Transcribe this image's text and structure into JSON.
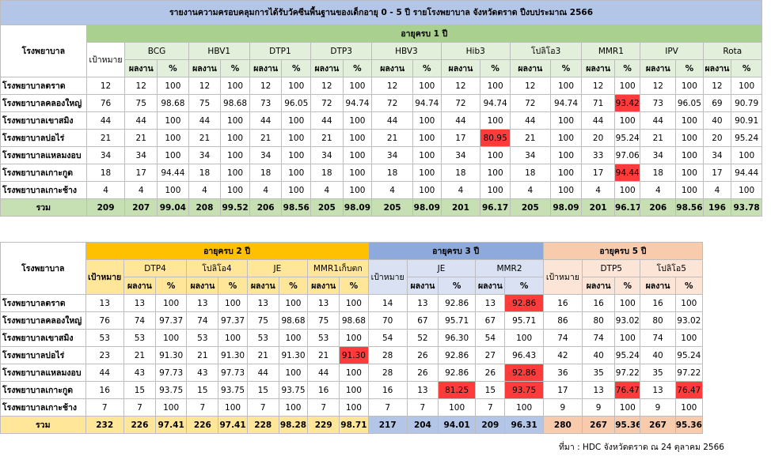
{
  "table1": {
    "title": "รายงานความครอบคลุมการได้รับวัคซีนพื้นฐานของเด็กอายุ 0 - 5 ปี รายโรงพยาบาล จังหวัดตราด  ปีงบประมาณ 2566",
    "hospital_header": "โรงพยาบาล",
    "age_header": "อายุครบ 1 ปี",
    "target_header": "เป้าหมาย",
    "result_label": "ผลงาน",
    "pct_label": "%",
    "vaccines": [
      "BCG",
      "HBV1",
      "DTP1",
      "DTP3",
      "HBV3",
      "Hib3",
      "โปลิโอ3",
      "MMR1",
      "IPV",
      "Rota"
    ],
    "rows": [
      {
        "name": "โรงพยาบาลตราด",
        "cells": [
          "12",
          "12",
          "100",
          "12",
          "100",
          "12",
          "100",
          "12",
          "100",
          "12",
          "100",
          "12",
          "100",
          "12",
          "100",
          "12",
          "100",
          "12",
          "100",
          "12",
          "100"
        ]
      },
      {
        "name": "โรงพยาบาลคลองใหญ่",
        "cells": [
          "76",
          "75",
          "98.68",
          "75",
          "98.68",
          "73",
          "96.05",
          "72",
          "94.74",
          "72",
          "94.74",
          "72",
          "94.74",
          "72",
          "94.74",
          "71",
          "93.42",
          "73",
          "96.05",
          "69",
          "90.79"
        ]
      },
      {
        "name": "โรงพยาบาลเขาสมิง",
        "cells": [
          "44",
          "44",
          "100",
          "44",
          "100",
          "44",
          "100",
          "44",
          "100",
          "44",
          "100",
          "44",
          "100",
          "44",
          "100",
          "44",
          "100",
          "44",
          "100",
          "40",
          "90.91"
        ]
      },
      {
        "name": "โรงพยาบาลบ่อไร่",
        "cells": [
          "21",
          "21",
          "100",
          "21",
          "100",
          "21",
          "100",
          "21",
          "100",
          "21",
          "100",
          "17",
          "80.95",
          "21",
          "100",
          "20",
          "95.24",
          "21",
          "100",
          "20",
          "95.24"
        ]
      },
      {
        "name": "โรงพยาบาลแหลมงอบ",
        "cells": [
          "34",
          "34",
          "100",
          "34",
          "100",
          "34",
          "100",
          "34",
          "100",
          "34",
          "100",
          "34",
          "100",
          "34",
          "100",
          "33",
          "97.06",
          "34",
          "100",
          "34",
          "100"
        ]
      },
      {
        "name": "โรงพยาบาลเกาะกูด",
        "cells": [
          "18",
          "17",
          "94.44",
          "18",
          "100",
          "18",
          "100",
          "18",
          "100",
          "18",
          "100",
          "18",
          "100",
          "18",
          "100",
          "17",
          "94.44",
          "18",
          "100",
          "17",
          "94.44"
        ]
      },
      {
        "name": "โรงพยาบาลเกาะช้าง",
        "cells": [
          "4",
          "4",
          "100",
          "4",
          "100",
          "4",
          "100",
          "4",
          "100",
          "4",
          "100",
          "4",
          "100",
          "4",
          "100",
          "4",
          "100",
          "4",
          "100",
          "4",
          "100"
        ]
      }
    ],
    "total": {
      "name": "รวม",
      "cells": [
        "209",
        "207",
        "99.04",
        "208",
        "99.52",
        "206",
        "98.56",
        "205",
        "98.09",
        "205",
        "98.09",
        "201",
        "96.17",
        "205",
        "98.09",
        "201",
        "96.17",
        "206",
        "98.56",
        "196",
        "93.78"
      ]
    },
    "highlight_color": "#ff3b3b"
  },
  "table2": {
    "hospital_header": "โรงพยาบาล",
    "target_header": "เป้าหมาย",
    "result_label": "ผลงาน",
    "pct_label": "%",
    "age2_header": "อายุครบ 2 ปี",
    "age2_vaccines": [
      "DTP4",
      "โปลิโอ4",
      "JE",
      "MMR1เก็บตก"
    ],
    "age3_header": "อายุครบ 3 ปี",
    "age3_vaccines": [
      "JE",
      "MMR2"
    ],
    "age5_header": "อายุครบ 5 ปี",
    "age5_vaccines": [
      "DTP5",
      "โปลิโอ5"
    ],
    "rows": [
      {
        "name": "โรงพยาบาลตราด",
        "a2": [
          "13",
          "13",
          "100",
          "13",
          "100",
          "13",
          "100",
          "13",
          "100"
        ],
        "a3": [
          "14",
          "13",
          "92.86",
          "13",
          "92.86"
        ],
        "a5": [
          "16",
          "16",
          "100",
          "16",
          "100"
        ]
      },
      {
        "name": "โรงพยาบาลคลองใหญ่",
        "a2": [
          "76",
          "74",
          "97.37",
          "74",
          "97.37",
          "75",
          "98.68",
          "75",
          "98.68"
        ],
        "a3": [
          "70",
          "67",
          "95.71",
          "67",
          "95.71"
        ],
        "a5": [
          "86",
          "80",
          "93.02",
          "80",
          "93.02"
        ]
      },
      {
        "name": "โรงพยาบาลเขาสมิง",
        "a2": [
          "53",
          "53",
          "100",
          "53",
          "100",
          "53",
          "100",
          "53",
          "100"
        ],
        "a3": [
          "54",
          "52",
          "96.30",
          "54",
          "100"
        ],
        "a5": [
          "74",
          "74",
          "100",
          "74",
          "100"
        ]
      },
      {
        "name": "โรงพยาบาลบ่อไร่",
        "a2": [
          "23",
          "21",
          "91.30",
          "21",
          "91.30",
          "21",
          "91.30",
          "21",
          "91.30"
        ],
        "a3": [
          "28",
          "26",
          "92.86",
          "27",
          "96.43"
        ],
        "a5": [
          "42",
          "40",
          "95.24",
          "40",
          "95.24"
        ]
      },
      {
        "name": "โรงพยาบาลแหลมงอบ",
        "a2": [
          "44",
          "43",
          "97.73",
          "43",
          "97.73",
          "44",
          "100",
          "44",
          "100"
        ],
        "a3": [
          "28",
          "26",
          "92.86",
          "26",
          "92.86"
        ],
        "a5": [
          "36",
          "35",
          "97.22",
          "35",
          "97.22"
        ]
      },
      {
        "name": "โรงพยาบาลเกาะกูด",
        "a2": [
          "16",
          "15",
          "93.75",
          "15",
          "93.75",
          "15",
          "93.75",
          "16",
          "100"
        ],
        "a3": [
          "16",
          "13",
          "81.25",
          "15",
          "93.75"
        ],
        "a5": [
          "17",
          "13",
          "76.47",
          "13",
          "76.47"
        ]
      },
      {
        "name": "โรงพยาบาลเกาะช้าง",
        "a2": [
          "7",
          "7",
          "100",
          "7",
          "100",
          "7",
          "100",
          "7",
          "100"
        ],
        "a3": [
          "7",
          "7",
          "100",
          "7",
          "100"
        ],
        "a5": [
          "9",
          "9",
          "100",
          "9",
          "100"
        ]
      }
    ],
    "total": {
      "name": "รวม",
      "a2": [
        "232",
        "226",
        "97.41",
        "226",
        "97.41",
        "228",
        "98.28",
        "229",
        "98.71"
      ],
      "a3": [
        "217",
        "204",
        "94.01",
        "209",
        "96.31"
      ],
      "a5": [
        "280",
        "267",
        "95.36",
        "267",
        "95.36"
      ]
    }
  },
  "source_note": "ที่มา : HDC จังหวัดตราด ณ 24 ตุลาคม  2566"
}
